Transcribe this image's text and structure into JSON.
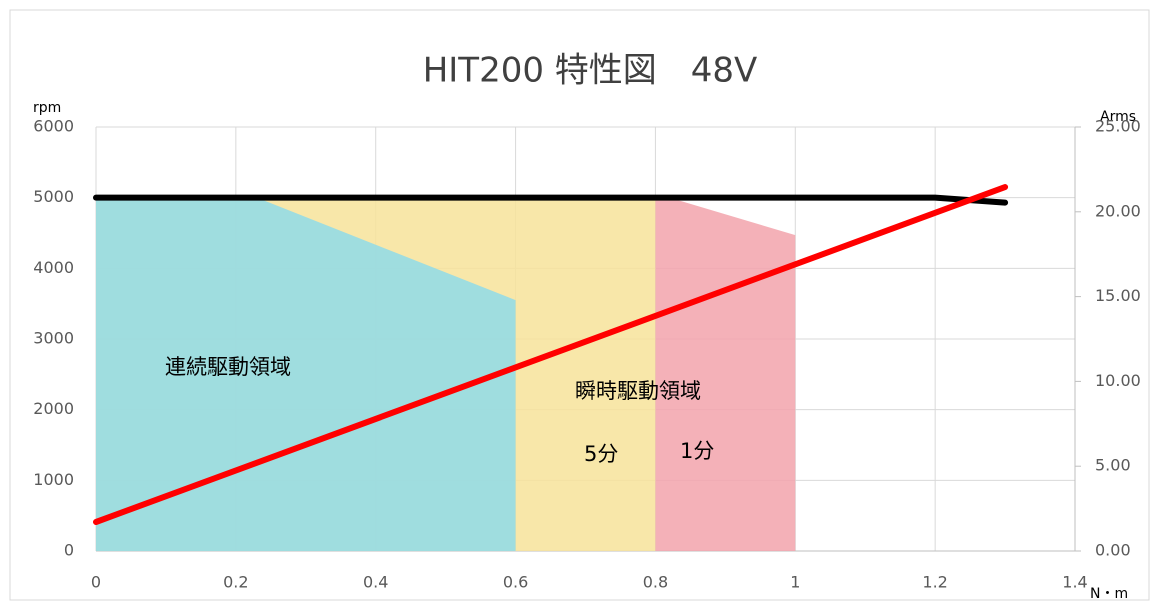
{
  "chart_data": {
    "type": "line",
    "title": "HIT200 特性図　48V",
    "y_label": "rpm",
    "y2_label": "Arms",
    "x_label": "N・m",
    "annotations": [
      "連続駆動領域",
      "瞬時駆動領域",
      "5分",
      "1分"
    ],
    "xlim": [
      0,
      1.4
    ],
    "xticks": [
      0,
      0.2,
      0.4,
      0.6,
      0.8,
      1,
      1.2,
      1.4
    ],
    "ylim": [
      0,
      6000
    ],
    "yticks": [
      0,
      1000,
      2000,
      3000,
      4000,
      5000,
      6000
    ],
    "y2lim": [
      0,
      25
    ],
    "y2ticks": [
      {
        "value": 0,
        "label": "0.00"
      },
      {
        "value": 5,
        "label": "5.00"
      },
      {
        "value": 10,
        "label": "10.00"
      },
      {
        "value": 15,
        "label": "15.00"
      },
      {
        "value": 20,
        "label": "20.00"
      },
      {
        "value": 25,
        "label": "25.00"
      }
    ],
    "grid": true,
    "series": [
      {
        "type": "area",
        "color": "#f7e39a",
        "x": [
          0,
          0.8
        ],
        "values": [
          5000,
          5000
        ]
      },
      {
        "type": "area",
        "color": "#f2a3ac",
        "x": [
          0.8,
          0.82,
          1.0
        ],
        "values": [
          5000,
          5000,
          4470
        ]
      },
      {
        "type": "area",
        "color": "#8fdbe9",
        "x": [
          0,
          0.23,
          0.6
        ],
        "values": [
          5000,
          5000,
          3550
        ]
      },
      {
        "type": "line",
        "color": "#000000",
        "x": [
          0,
          1.2,
          1.3
        ],
        "values": [
          5000,
          5000,
          4930
        ]
      },
      {
        "type": "line",
        "color": "#ff0000",
        "axis": "y2",
        "x": [
          0,
          1.3
        ],
        "values": [
          1.71,
          21.46
        ]
      }
    ]
  }
}
